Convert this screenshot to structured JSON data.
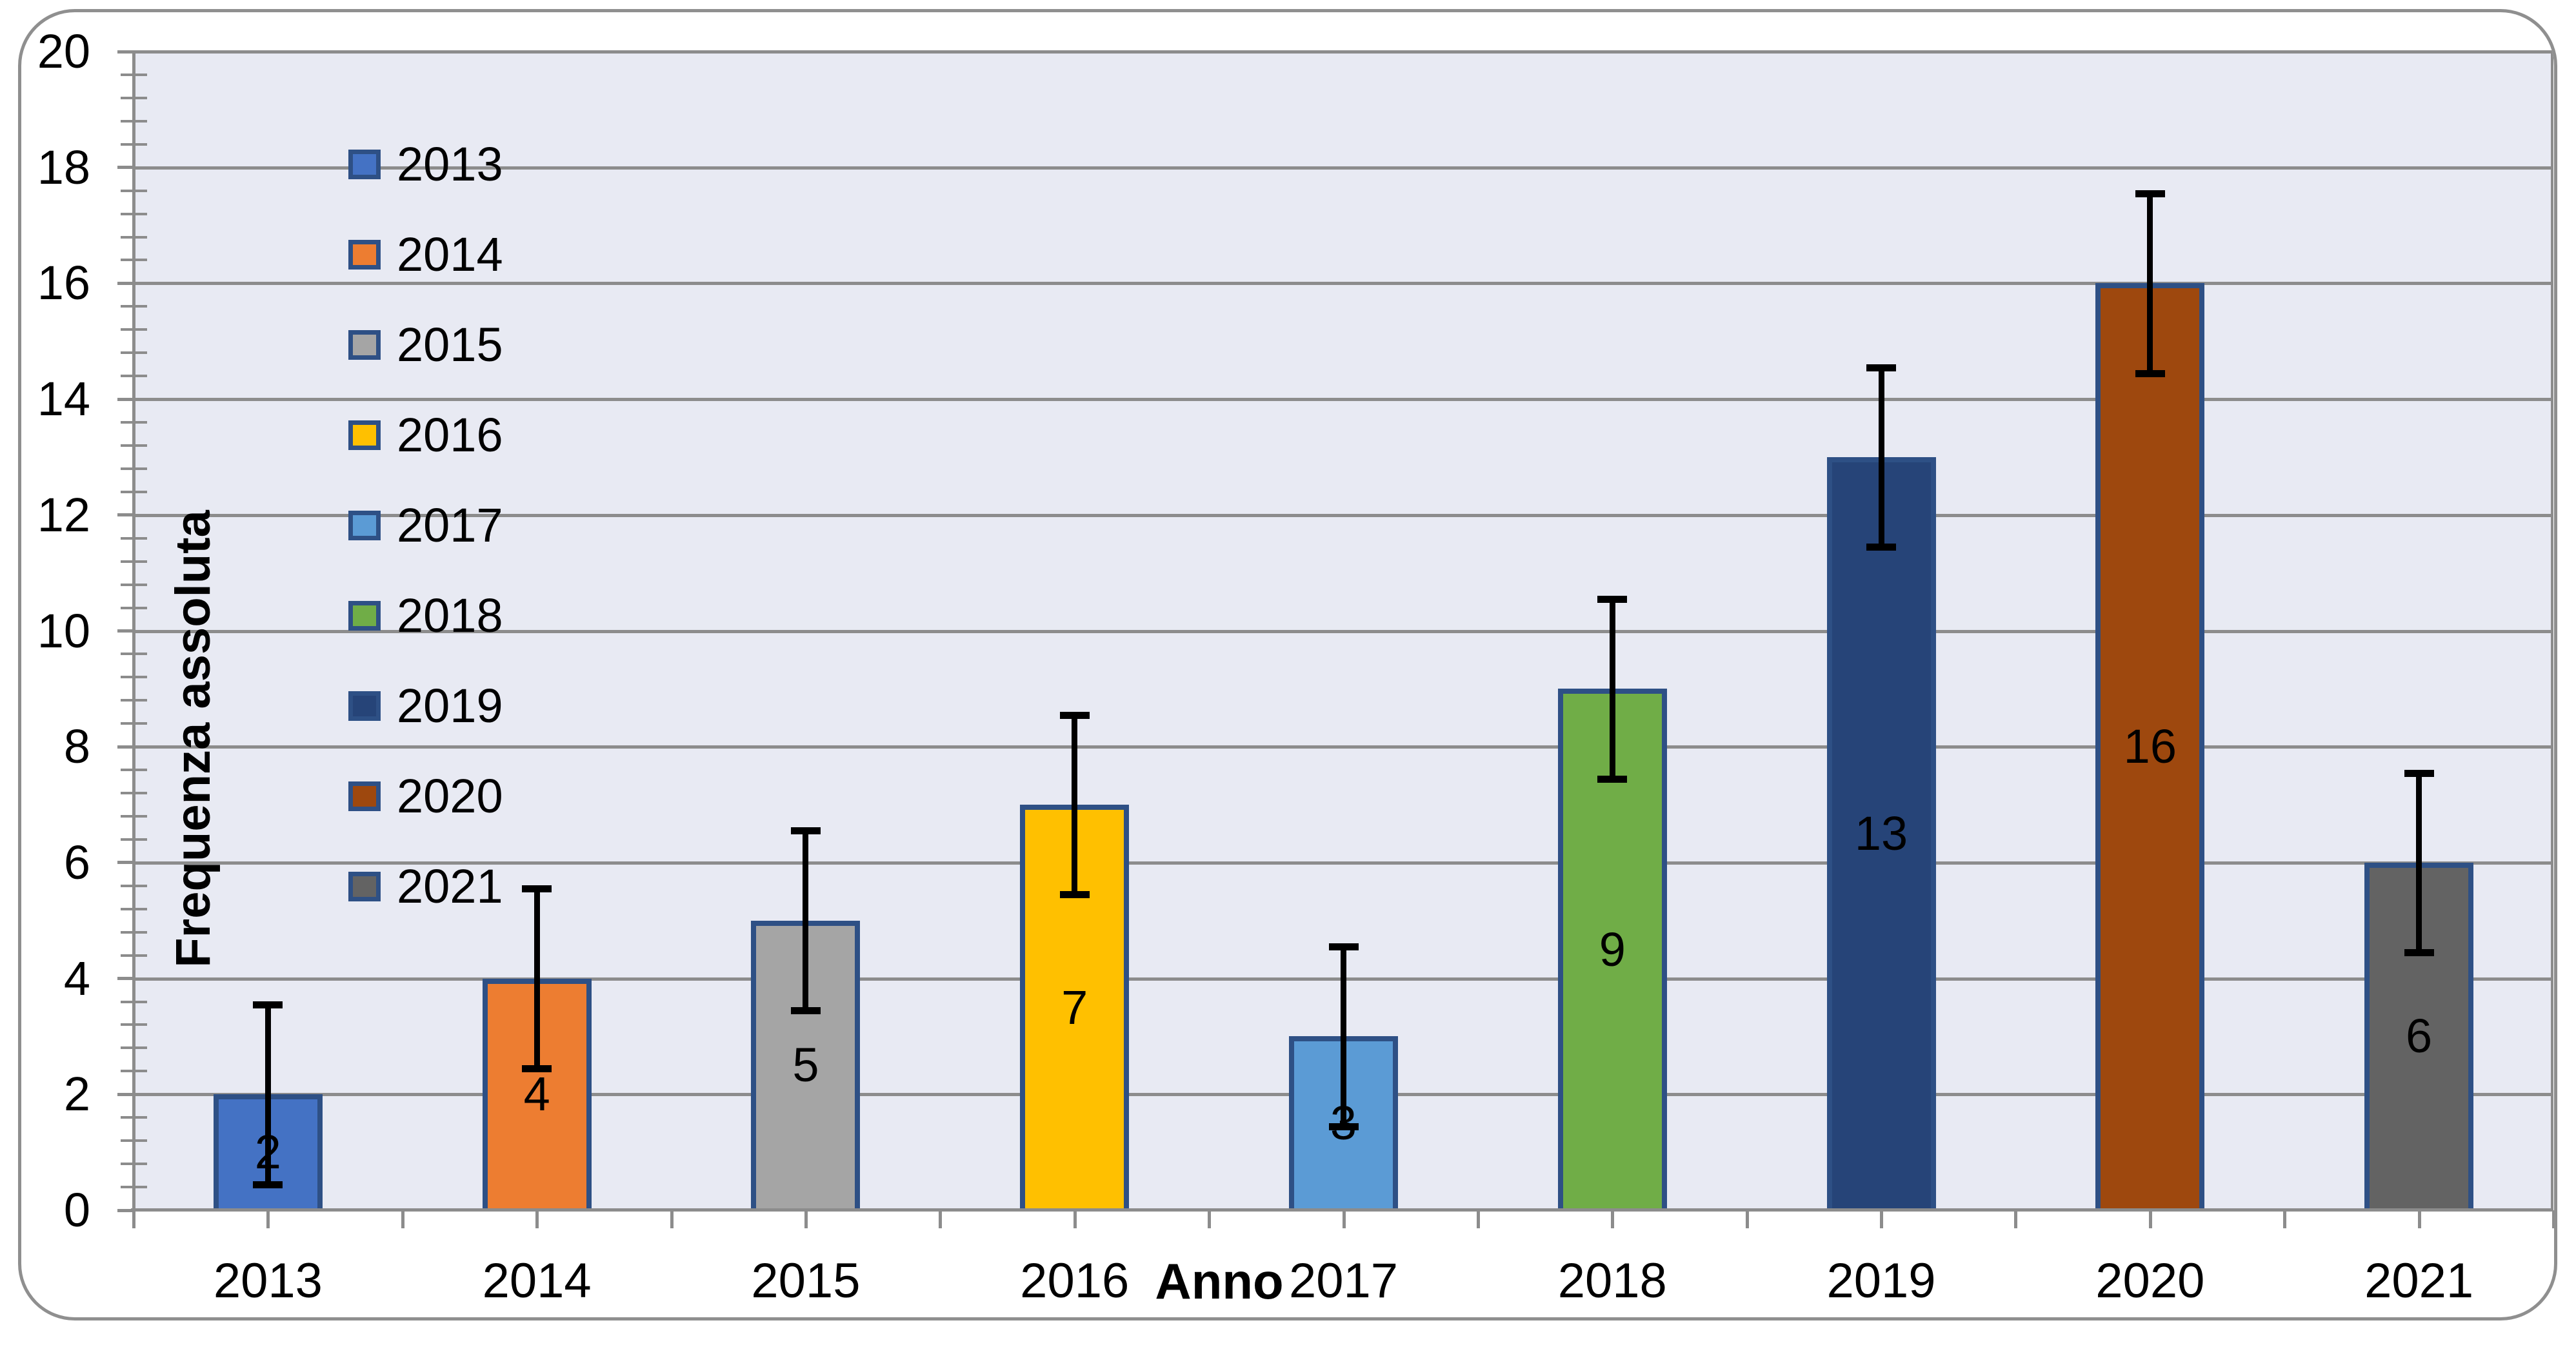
{
  "chart_data": {
    "type": "bar",
    "title": "",
    "xlabel": "Anno",
    "ylabel": "Frequenza assoluta",
    "categories": [
      "2013",
      "2014",
      "2015",
      "2016",
      "2017",
      "2018",
      "2019",
      "2020",
      "2021"
    ],
    "values": [
      2,
      4,
      5,
      7,
      3,
      9,
      13,
      16,
      6
    ],
    "data_labels": [
      "2",
      "4",
      "5",
      "7",
      "3",
      "9",
      "13",
      "16",
      "6"
    ],
    "series": [
      {
        "name": "2013",
        "value": 2
      },
      {
        "name": "2014",
        "value": 4
      },
      {
        "name": "2015",
        "value": 5
      },
      {
        "name": "2016",
        "value": 7
      },
      {
        "name": "2017",
        "value": 3
      },
      {
        "name": "2018",
        "value": 9
      },
      {
        "name": "2019",
        "value": 13
      },
      {
        "name": "2020",
        "value": 16
      },
      {
        "name": "2021",
        "value": 6
      }
    ],
    "error_bars": {
      "plus": 1.55,
      "minus": 1.55,
      "cap": true
    },
    "ylim": [
      0,
      20
    ],
    "y_major_unit": 2,
    "y_minor_unit": 0.4,
    "y_tick_labels": [
      "0",
      "2",
      "4",
      "6",
      "8",
      "10",
      "12",
      "14",
      "16",
      "18",
      "20"
    ],
    "grid": "horizontal-major",
    "legend": {
      "position": "inside-top-left",
      "entries": [
        {
          "label": "2013",
          "color": "#4472C4"
        },
        {
          "label": "2014",
          "color": "#ED7D31"
        },
        {
          "label": "2015",
          "color": "#A5A5A5"
        },
        {
          "label": "2016",
          "color": "#FFC000"
        },
        {
          "label": "2017",
          "color": "#5B9BD5"
        },
        {
          "label": "2018",
          "color": "#70AD47"
        },
        {
          "label": "2019",
          "color": "#264478"
        },
        {
          "label": "2020",
          "color": "#9E480E"
        },
        {
          "label": "2021",
          "color": "#636363"
        }
      ]
    },
    "colors": {
      "bar_fills": [
        "#4472C4",
        "#ED7D31",
        "#A5A5A5",
        "#FFC000",
        "#5B9BD5",
        "#70AD47",
        "#264478",
        "#9E480E",
        "#636363"
      ],
      "bar_border": "#2E5085",
      "error_bar": "#000000",
      "plot_background": "#E8EAF3",
      "gridline": "#8C8C8C",
      "axis_line": "#8C8C8C",
      "text": "#000000",
      "chart_border": "#8F8F8F",
      "chart_background": "#FFFFFF"
    }
  }
}
